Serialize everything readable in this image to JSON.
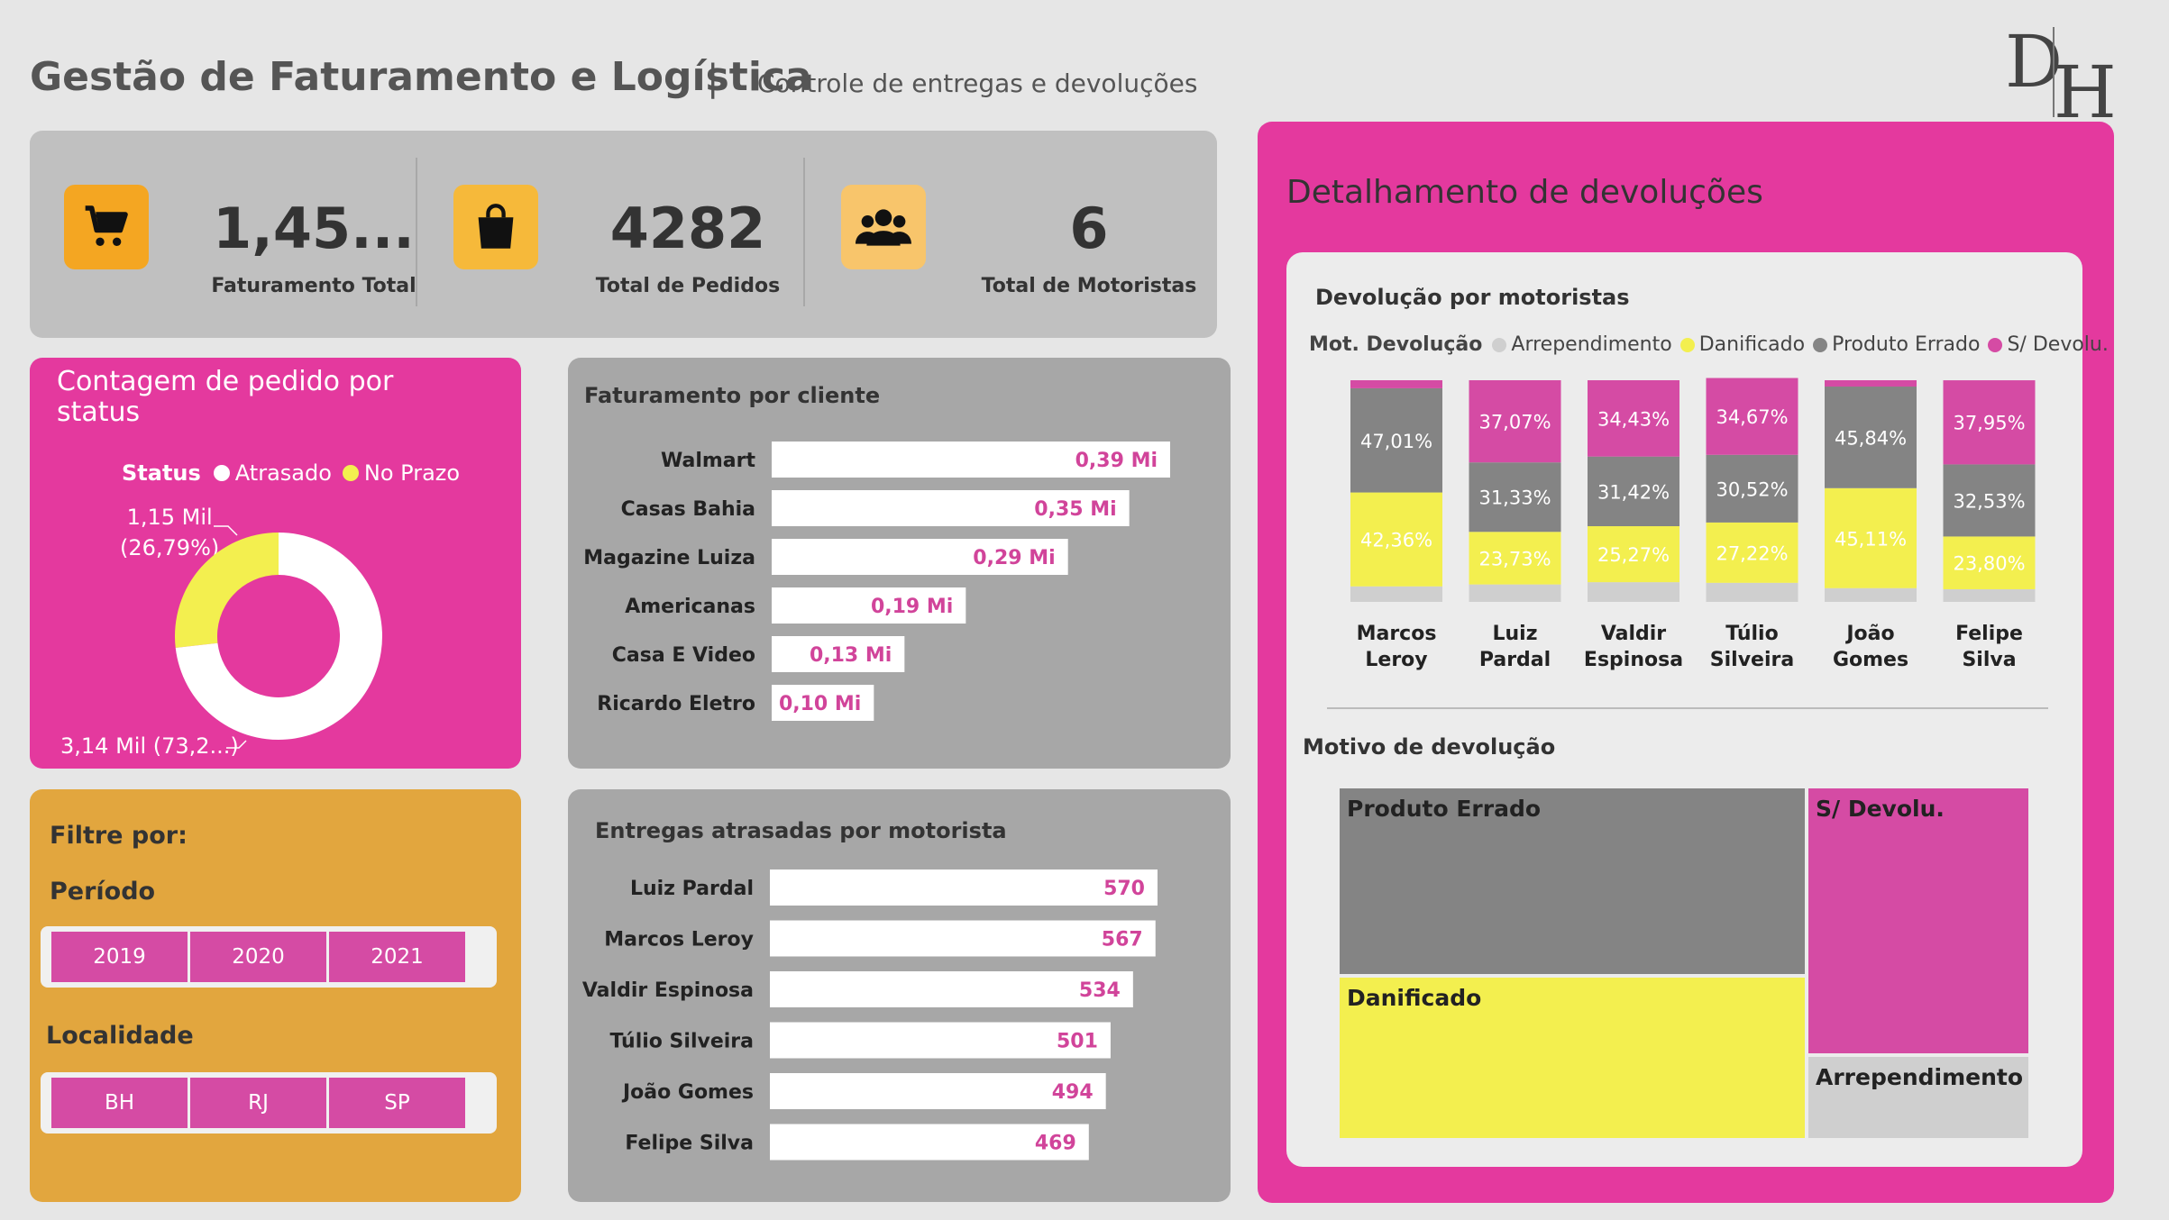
{
  "header": {
    "title": "Gestão de Faturamento e Logística",
    "separator": "|",
    "subtitle": "Controle de entregas e devoluções",
    "logo_text_d": "D",
    "logo_text_h": "H"
  },
  "kpis": [
    {
      "value": "1,45...",
      "label": "Faturamento Total",
      "icon": "cart-icon",
      "color": "#f4a622"
    },
    {
      "value": "4282",
      "label": "Total de Pedidos",
      "icon": "shopping-bag-icon",
      "color": "#f6b93a"
    },
    {
      "value": "6",
      "label": "Total de Motoristas",
      "icon": "users-icon",
      "color": "#f8c56b"
    }
  ],
  "colors": {
    "pink": "#e4399e",
    "bar_label": "#d1449a",
    "arrependimento": "#cfcfcf",
    "danificado": "#f3ef4f",
    "produto_errado": "#848484",
    "sem_devolucao": "#d54ba4",
    "orange": "#e2a63e"
  },
  "status_chart": {
    "title": "Contagem de pedido por status",
    "legend_title": "Status",
    "legend": [
      "Atrasado",
      "No Prazo"
    ],
    "label_top_line1": "1,15 Mil",
    "label_top_line2": "(26,79%)",
    "label_bottom": "3,14 Mil (73,2...)"
  },
  "filters": {
    "title": "Filtre por:",
    "period_title": "Período",
    "periods": [
      "2019",
      "2020",
      "2021"
    ],
    "location_title": "Localidade",
    "locations": [
      "BH",
      "RJ",
      "SP"
    ]
  },
  "revenue_panel": {
    "title": "Faturamento por cliente"
  },
  "late_panel": {
    "title": "Entregas atrasadas por motorista"
  },
  "detail": {
    "title": "Detalhamento de devoluções",
    "stack_title": "Devolução por motoristas",
    "stack_legend_title": "Mot. Devolução",
    "stack_legend": [
      "Arrependimento",
      "Danificado",
      "Produto Errado",
      "S/ Devolu."
    ],
    "treemap_title": "Motivo de devolução",
    "treemap_labels": [
      "Produto Errado",
      "S/ Devolu.",
      "Danificado",
      "Arrependimento"
    ]
  },
  "chart_data": [
    {
      "type": "pie",
      "title": "Contagem de pedido por status",
      "categories": [
        "Atrasado",
        "No Prazo"
      ],
      "values": [
        1150,
        3140
      ],
      "percentages": [
        26.79,
        73.21
      ]
    },
    {
      "type": "bar",
      "orientation": "horizontal",
      "title": "Faturamento por cliente",
      "categories": [
        "Walmart",
        "Casas Bahia",
        "Magazine Luiza",
        "Americanas",
        "Casa E Video",
        "Ricardo Eletro"
      ],
      "values": [
        0.39,
        0.35,
        0.29,
        0.19,
        0.13,
        0.1
      ],
      "labels": [
        "0,39 Mi",
        "0,35 Mi",
        "0,29 Mi",
        "0,19 Mi",
        "0,13 Mi",
        "0,10 Mi"
      ]
    },
    {
      "type": "bar",
      "orientation": "horizontal",
      "title": "Entregas atrasadas por motorista",
      "categories": [
        "Luiz Pardal",
        "Marcos Leroy",
        "Valdir Espinosa",
        "Túlio Silveira",
        "João Gomes",
        "Felipe Silva"
      ],
      "values": [
        570,
        567,
        534,
        501,
        494,
        469
      ],
      "labels": [
        "570",
        "567",
        "534",
        "501",
        "494",
        "469"
      ]
    },
    {
      "type": "bar",
      "stacked": "100%",
      "title": "Devolução por motoristas",
      "categories": [
        "Marcos Leroy",
        "Luiz Pardal",
        "Valdir Espinosa",
        "Túlio Silveira",
        "João Gomes",
        "Felipe Silva"
      ],
      "series": [
        {
          "name": "Arrependimento",
          "values": [
            7.0,
            7.87,
            8.88,
            8.6,
            6.2,
            5.7
          ]
        },
        {
          "name": "Danificado",
          "values": [
            42.36,
            23.73,
            25.27,
            27.22,
            45.11,
            23.8
          ]
        },
        {
          "name": "Produto Errado",
          "values": [
            47.01,
            31.33,
            31.42,
            30.52,
            45.84,
            32.53
          ]
        },
        {
          "name": "S/ Devolu.",
          "values": [
            3.63,
            37.07,
            34.43,
            34.67,
            2.85,
            37.95
          ]
        }
      ],
      "labels": {
        "Danificado": [
          "42,36%",
          "23,73%",
          "25,27%",
          "27,22%",
          "45,11%",
          "23,80%"
        ],
        "Produto Errado": [
          "47,01%",
          "31,33%",
          "31,42%",
          "30,52%",
          "45,84%",
          "32,53%"
        ],
        "S/ Devolu.": [
          "",
          "37,07%",
          "34,43%",
          "34,67%",
          "",
          "37,95%"
        ]
      }
    },
    {
      "type": "treemap",
      "title": "Motivo de devolução",
      "categories": [
        "Produto Errado",
        "Danificado",
        "S/ Devolu.",
        "Arrependimento"
      ],
      "values": [
        35,
        33,
        25,
        7
      ]
    }
  ]
}
